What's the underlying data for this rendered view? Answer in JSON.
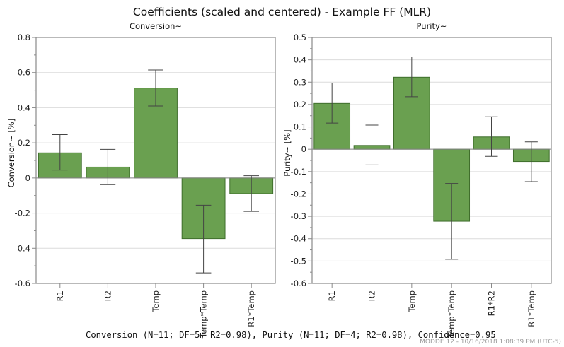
{
  "title": "Coefficients (scaled and centered) - Example FF (MLR)",
  "footer": "Conversion (N=11; DF=5; R2=0.98), Purity (N=11; DF=4; R2=0.98), Confidence=0.95",
  "stamp": "MODDE 12 - 10/16/2018 1:08:39 PM (UTC-5)",
  "colors": {
    "bar": "#6aa050",
    "bar_edge": "#3f6e2c",
    "error": "#444444",
    "grid": "#dcdcdc",
    "frame": "#8a8a8a"
  },
  "chart_data": [
    {
      "type": "bar",
      "title": "Conversion~",
      "ylabel": "Conversion~ [%]",
      "xlabel": "",
      "ylim": [
        -0.6,
        0.8
      ],
      "yticks": [
        -0.6,
        -0.4,
        -0.2,
        0,
        0.2,
        0.4,
        0.6,
        0.8
      ],
      "ytick_labels": [
        "-0.6",
        "-0.4",
        "-0.2",
        "0",
        "0.2",
        "0.4",
        "0.6",
        "0.8"
      ],
      "grid": true,
      "categories": [
        "R1",
        "R2",
        "Temp",
        "Temp*Temp",
        "R1*Temp"
      ],
      "values": [
        0.143,
        0.062,
        0.512,
        -0.345,
        -0.089
      ],
      "error_low": [
        0.045,
        -0.038,
        0.41,
        -0.54,
        -0.19
      ],
      "error_high": [
        0.247,
        0.163,
        0.615,
        -0.155,
        0.013
      ]
    },
    {
      "type": "bar",
      "title": "Purity~",
      "ylabel": "Purity~ [%]",
      "xlabel": "",
      "ylim": [
        -0.6,
        0.5
      ],
      "yticks": [
        -0.6,
        -0.5,
        -0.4,
        -0.3,
        -0.2,
        -0.1,
        0,
        0.1,
        0.2,
        0.3,
        0.4,
        0.5
      ],
      "ytick_labels": [
        "-0.6",
        "-0.5",
        "-0.4",
        "-0.3",
        "-0.2",
        "-0.1",
        "0",
        "0.1",
        "0.2",
        "0.3",
        "0.4",
        "0.5"
      ],
      "grid": true,
      "categories": [
        "R1",
        "R2",
        "Temp",
        "Temp*Temp",
        "R1*R2",
        "R1*Temp"
      ],
      "values": [
        0.205,
        0.017,
        0.322,
        -0.322,
        0.055,
        -0.055
      ],
      "error_low": [
        0.117,
        -0.07,
        0.235,
        -0.492,
        -0.032,
        -0.145
      ],
      "error_high": [
        0.296,
        0.108,
        0.413,
        -0.153,
        0.145,
        0.033
      ]
    }
  ]
}
